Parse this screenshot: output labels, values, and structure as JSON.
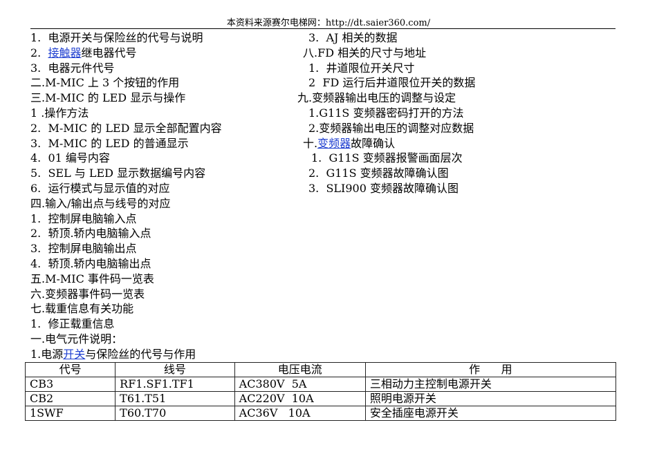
{
  "header": "本资料来源赛尔电梯网：http://dt.saier360.com/",
  "left_lines": [
    {
      "pre": "1.  电源开关与保险丝的代号与说明"
    },
    {
      "pre": "2.  ",
      "link": "接触器",
      "post": "继电器代号"
    },
    {
      "pre": "3.  电器元件代号"
    },
    {
      "pre": "二.M-MIC 上 3 个按钮的作用"
    },
    {
      "pre": "三.M-MIC 的 LED 显示与操作"
    },
    {
      "pre": "1 .操作方法"
    },
    {
      "pre": "2.  M-MIC 的 LED 显示全部配置内容"
    },
    {
      "pre": "3.  M-MIC 的 LED 的普通显示"
    },
    {
      "pre": "4.  01 编号内容"
    },
    {
      "pre": "5.  SEL 与 LED 显示数据编号内容"
    },
    {
      "pre": "6.  运行模式与显示值的对应"
    },
    {
      "pre": "四.输入/输出点与线号的对应"
    },
    {
      "pre": "1.  控制屏电脑输入点"
    },
    {
      "pre": "2.  轿顶.轿内电脑输入点"
    },
    {
      "pre": "3.  控制屏电脑输出点"
    },
    {
      "pre": "4.  轿顶.轿内电脑输出点"
    },
    {
      "pre": "五.M-MIC 事件码一览表"
    },
    {
      "pre": "六.变频器事件码一览表"
    },
    {
      "pre": "七.载重信息有关功能"
    },
    {
      "pre": "1.  修正载重信息"
    },
    {
      "pre": "一.电气元件说明："
    },
    {
      "pre": "1.电源",
      "link": "开关",
      "post": "与保险丝的代号与作用"
    }
  ],
  "right_lines": [
    {
      "pre": "3.  AJ 相关的数据"
    },
    {
      "pre": "八.FD 相关的尺寸与地址"
    },
    {
      "pre": "1.  井道限位开关尺寸"
    },
    {
      "pre": "2  FD 运行后井道限位开关的数据"
    },
    {
      "pre": "九.变频器输出电压的调整与设定"
    },
    {
      "pre": "1.G11S 变频器密码打开的方法"
    },
    {
      "pre": "2.变频器输出电压的调整对应数据"
    },
    {
      "pre": "十.",
      "link": "变频器",
      "post": "故障确认"
    },
    {
      "pre": "1.  G11S 变频器报警画面层次"
    },
    {
      "pre": "2.  G11S 变频器故障确认图"
    },
    {
      "pre": "3.  SLI900 变频器故障确认图"
    }
  ],
  "table": {
    "headers": [
      "代号",
      "线号",
      "电压电流",
      "作      用"
    ],
    "rows": [
      [
        "CB3",
        "RF1.SF1.TF1",
        "AC380V  5A",
        "三相动力主控制电源开关"
      ],
      [
        "CB2",
        "T61.T51",
        "AC220V  10A",
        "照明电源开关"
      ],
      [
        "1SWF",
        "T60.T70",
        "AC36V   10A",
        "安全插座电源开关"
      ]
    ]
  },
  "colors": {
    "link": "#1f3fd0"
  }
}
